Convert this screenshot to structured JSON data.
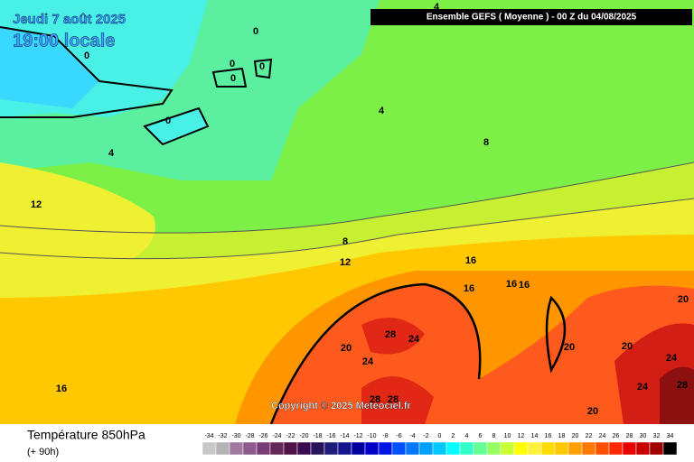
{
  "header": {
    "date": "Jeudi 7 août 2025",
    "time": "19:00 locale",
    "model": "Ensemble GEFS  ( Moyenne )  -  00 Z du 04/08/2025"
  },
  "copyright": "Copyright © 2025 Meteociel.fr",
  "footer": {
    "title": "Température 850hPa",
    "lead": "(+ 90h)"
  },
  "contour_labels": [
    0,
    0,
    0,
    0,
    0,
    0,
    4,
    4,
    4,
    8,
    8,
    12,
    12,
    16,
    16,
    16,
    16,
    16,
    20,
    20,
    20,
    20,
    20,
    24,
    24,
    24,
    24,
    28,
    28,
    28,
    28
  ],
  "legend": {
    "ticks": [
      -34,
      -32,
      -30,
      -28,
      -26,
      -24,
      -22,
      -20,
      -18,
      -16,
      -14,
      -12,
      -10,
      -8,
      -6,
      -4,
      -2,
      0,
      2,
      4,
      6,
      8,
      10,
      12,
      14,
      16,
      18,
      20,
      22,
      24,
      26,
      28,
      30,
      32,
      34
    ],
    "colors": [
      "#c8c8c8",
      "#b4b4b4",
      "#a078a0",
      "#8c5a8c",
      "#783c78",
      "#64285a",
      "#501446",
      "#3c0a50",
      "#28145a",
      "#1e1e78",
      "#14148c",
      "#0000a0",
      "#0000c8",
      "#0014e6",
      "#0050ff",
      "#0078ff",
      "#00a0ff",
      "#00c8ff",
      "#00ffff",
      "#32ffc8",
      "#64ff96",
      "#96ff64",
      "#c8ff32",
      "#ffff00",
      "#fff03c",
      "#ffdc00",
      "#ffc800",
      "#ffa000",
      "#ff7800",
      "#ff5000",
      "#ff2800",
      "#e60000",
      "#c80000",
      "#a00000",
      "#000000"
    ]
  }
}
